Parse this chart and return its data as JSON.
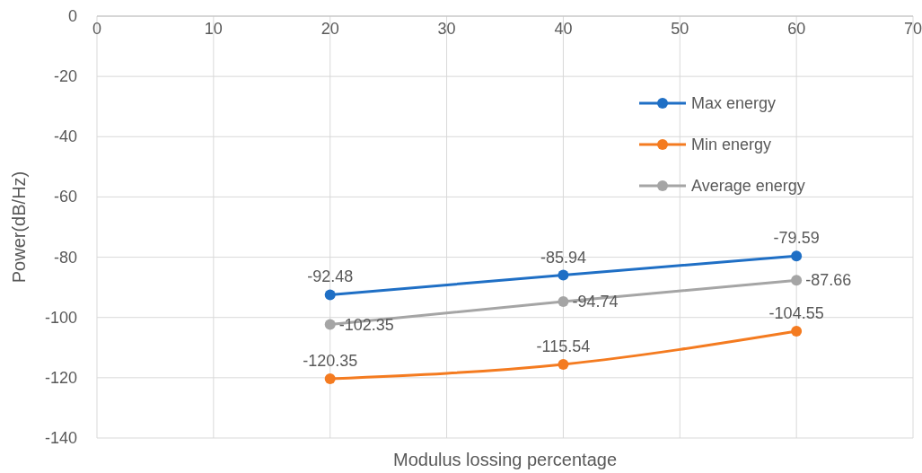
{
  "chart_data": {
    "type": "line",
    "xlabel": "Modulus lossing percentage",
    "ylabel": "Power(dB/Hz)",
    "x": [
      20,
      40,
      60
    ],
    "series": [
      {
        "name": "Max energy",
        "color": "#1f6fc5",
        "values": [
          -92.48,
          -85.94,
          -79.59
        ]
      },
      {
        "name": "Min energy",
        "color": "#f47b20",
        "values": [
          -120.35,
          -115.54,
          -104.55
        ]
      },
      {
        "name": "Average energy",
        "color": "#a5a5a5",
        "values": [
          -102.35,
          -94.74,
          -87.66
        ]
      }
    ],
    "xlim": [
      0,
      70
    ],
    "xticks": [
      0,
      10,
      20,
      30,
      40,
      50,
      60,
      70
    ],
    "ylim": [
      -140,
      0
    ],
    "yticks": [
      0,
      -20,
      -40,
      -60,
      -80,
      -100,
      -120,
      -140
    ],
    "grid": true,
    "legend": "top right",
    "marker": "circle",
    "line_style": "solid",
    "data_labels": true
  }
}
